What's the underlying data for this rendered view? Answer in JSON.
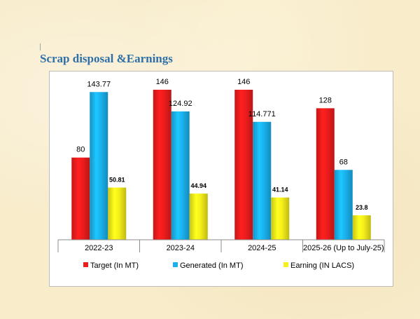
{
  "page": {
    "title": "Scrap disposal &Earnings"
  },
  "chart_data": {
    "type": "bar",
    "title": "",
    "xlabel": "",
    "ylabel": "",
    "ylim": [
      0,
      146
    ],
    "grid": false,
    "legend_position": "bottom",
    "categories": [
      "2022-23",
      "2023-24",
      "2024-25",
      "2025-26 (Up to July-25)"
    ],
    "series": [
      {
        "name": "Target (In MT)",
        "color": "#ee1c1c",
        "values": [
          80,
          146,
          146,
          128
        ],
        "labels": [
          "80",
          "146",
          "146",
          "128"
        ]
      },
      {
        "name": "Generated (In MT)",
        "color": "#1ab2ee",
        "values": [
          143.77,
          124.92,
          114.771,
          68
        ],
        "labels": [
          "143.77",
          "124.92",
          "114.771",
          "68"
        ]
      },
      {
        "name": "Earning (IN LACS)",
        "color": "#f5ef1a",
        "values": [
          50.81,
          44.94,
          41.14,
          23.8
        ],
        "labels": [
          "50.81",
          "44.94",
          "41.14",
          "23.8"
        ]
      }
    ]
  }
}
